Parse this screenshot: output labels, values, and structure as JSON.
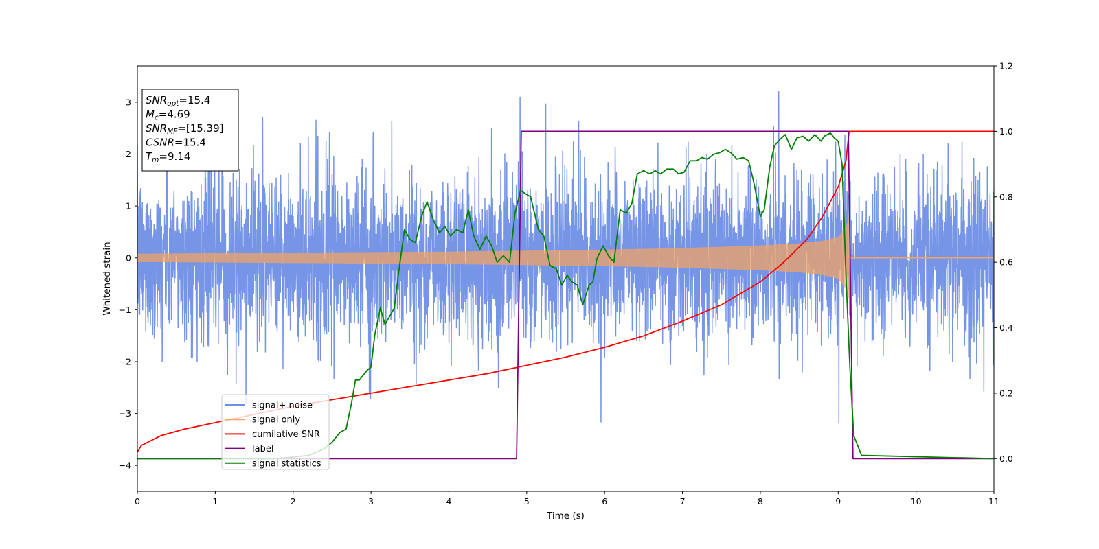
{
  "chart_data": {
    "type": "line",
    "xlabel": "Time (s)",
    "ylabel": "Whitened strain",
    "xlim": [
      0,
      11
    ],
    "ylim": [
      -4.5,
      3.7
    ],
    "y2lim": [
      -0.1,
      1.2
    ],
    "xticks": [
      "0",
      "1",
      "2",
      "3",
      "4",
      "5",
      "6",
      "7",
      "8",
      "9",
      "10",
      "11"
    ],
    "yticks": [
      "3",
      "2",
      "1",
      "0",
      "−1",
      "−2",
      "−3",
      "−4"
    ],
    "y2ticks": [
      "1.2",
      "1.0",
      "0.8",
      "0.6",
      "0.4",
      "0.2",
      "0.0"
    ],
    "grid": false,
    "legend_position": "lower-left",
    "legend": [
      "signal+ noise",
      "signal only",
      "cumilative SNR",
      "label",
      "signal statistics"
    ],
    "colors": {
      "noise": "#6f8fe6",
      "signal": "#f4a460",
      "cumulative": "#ff0000",
      "label": "#800080",
      "statistics": "#008000"
    },
    "info_box": [
      {
        "name": "SNR",
        "sub": "opt",
        "value": "=15.4"
      },
      {
        "name": "M",
        "sub": "c",
        "value": "=4.69"
      },
      {
        "name": "SNR",
        "sub": "MF",
        "value": "=[15.39]"
      },
      {
        "name": "CSNR",
        "sub": "",
        "value": "=15.4"
      },
      {
        "name": "T",
        "sub": "m",
        "value": "=9.14"
      }
    ],
    "series": [
      {
        "name": "signal+ noise",
        "axis": "left",
        "description": "whitened noisy strain, approx. ±1.9 envelope with spikes to 3.3 / -4.2, sampled 0–11 s"
      },
      {
        "name": "signal only",
        "axis": "left",
        "envelope_x": [
          0,
          1,
          2,
          3,
          4,
          5,
          6,
          7,
          8,
          8.5,
          8.8,
          9.0,
          9.1,
          9.14,
          9.15,
          11
        ],
        "envelope_amp": [
          0.08,
          0.09,
          0.1,
          0.11,
          0.12,
          0.14,
          0.16,
          0.19,
          0.24,
          0.28,
          0.33,
          0.4,
          0.6,
          0.8,
          0.0,
          0.0
        ]
      },
      {
        "name": "cumilative SNR",
        "axis": "right",
        "x": [
          0,
          0.05,
          0.3,
          0.6,
          1,
          1.5,
          2,
          2.5,
          3,
          3.5,
          4,
          4.5,
          5,
          5.5,
          6,
          6.5,
          7,
          7.5,
          8,
          8.3,
          8.6,
          8.8,
          9.0,
          9.1,
          9.14,
          11
        ],
        "y": [
          0.02,
          0.04,
          0.07,
          0.09,
          0.11,
          0.135,
          0.16,
          0.18,
          0.2,
          0.22,
          0.24,
          0.26,
          0.285,
          0.31,
          0.34,
          0.375,
          0.42,
          0.47,
          0.54,
          0.6,
          0.67,
          0.74,
          0.83,
          0.91,
          1.0,
          1.0
        ]
      },
      {
        "name": "label",
        "axis": "right",
        "x": [
          0,
          4.87,
          4.93,
          9.13,
          9.19,
          11
        ],
        "y": [
          0,
          0,
          1,
          1,
          0,
          0
        ]
      },
      {
        "name": "signal statistics",
        "axis": "right",
        "x": [
          0,
          1.8,
          2.2,
          2.4,
          2.5,
          2.6,
          2.68,
          2.75,
          2.8,
          2.85,
          2.95,
          3.0,
          3.05,
          3.12,
          3.18,
          3.3,
          3.35,
          3.43,
          3.5,
          3.57,
          3.65,
          3.72,
          3.8,
          3.88,
          3.95,
          4.02,
          4.1,
          4.18,
          4.25,
          4.32,
          4.4,
          4.48,
          4.55,
          4.62,
          4.7,
          4.78,
          4.85,
          4.92,
          4.98,
          5.05,
          5.15,
          5.22,
          5.3,
          5.38,
          5.45,
          5.52,
          5.58,
          5.65,
          5.72,
          5.8,
          5.85,
          5.9,
          5.98,
          6.05,
          6.12,
          6.2,
          6.28,
          6.35,
          6.42,
          6.5,
          6.58,
          6.65,
          6.72,
          6.8,
          6.88,
          6.95,
          7.02,
          7.1,
          7.18,
          7.25,
          7.32,
          7.4,
          7.48,
          7.55,
          7.62,
          7.7,
          7.78,
          7.85,
          7.92,
          8.0,
          8.05,
          8.12,
          8.18,
          8.25,
          8.32,
          8.4,
          8.47,
          8.55,
          8.62,
          8.7,
          8.78,
          8.82,
          8.9,
          8.95,
          9.0,
          9.05,
          9.1,
          9.15,
          9.2,
          9.3,
          11
        ],
        "y": [
          0,
          0.0,
          0.01,
          0.03,
          0.05,
          0.08,
          0.09,
          0.17,
          0.24,
          0.24,
          0.27,
          0.28,
          0.38,
          0.46,
          0.41,
          0.46,
          0.56,
          0.7,
          0.67,
          0.66,
          0.74,
          0.785,
          0.73,
          0.69,
          0.71,
          0.68,
          0.7,
          0.69,
          0.76,
          0.68,
          0.64,
          0.68,
          0.65,
          0.6,
          0.62,
          0.6,
          0.75,
          0.82,
          0.81,
          0.8,
          0.7,
          0.68,
          0.59,
          0.58,
          0.53,
          0.56,
          0.54,
          0.53,
          0.47,
          0.53,
          0.54,
          0.61,
          0.65,
          0.62,
          0.6,
          0.76,
          0.75,
          0.78,
          0.87,
          0.88,
          0.87,
          0.88,
          0.87,
          0.885,
          0.885,
          0.87,
          0.875,
          0.91,
          0.91,
          0.92,
          0.915,
          0.93,
          0.935,
          0.945,
          0.935,
          0.915,
          0.92,
          0.91,
          0.84,
          0.74,
          0.76,
          0.89,
          0.955,
          0.975,
          0.99,
          0.945,
          0.98,
          0.985,
          0.97,
          0.99,
          0.97,
          0.985,
          0.995,
          0.98,
          0.97,
          0.9,
          0.56,
          0.28,
          0.07,
          0.01,
          0.0
        ]
      }
    ]
  }
}
